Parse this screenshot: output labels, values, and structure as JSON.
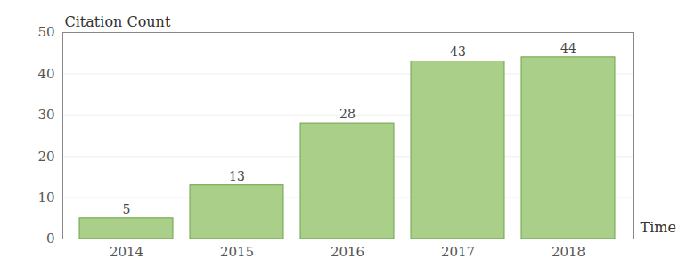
{
  "chart_data": {
    "type": "bar",
    "x_label": "Time",
    "y_label": "Citation Count",
    "categories": [
      "2014",
      "2015",
      "2016",
      "2017",
      "2018"
    ],
    "values": [
      5,
      13,
      28,
      43,
      44
    ],
    "color": "#a9cf88",
    "ylim": [
      0,
      50
    ],
    "yticks": [
      0,
      10,
      20,
      30,
      40,
      50
    ],
    "grid": true,
    "data_labels": true
  }
}
